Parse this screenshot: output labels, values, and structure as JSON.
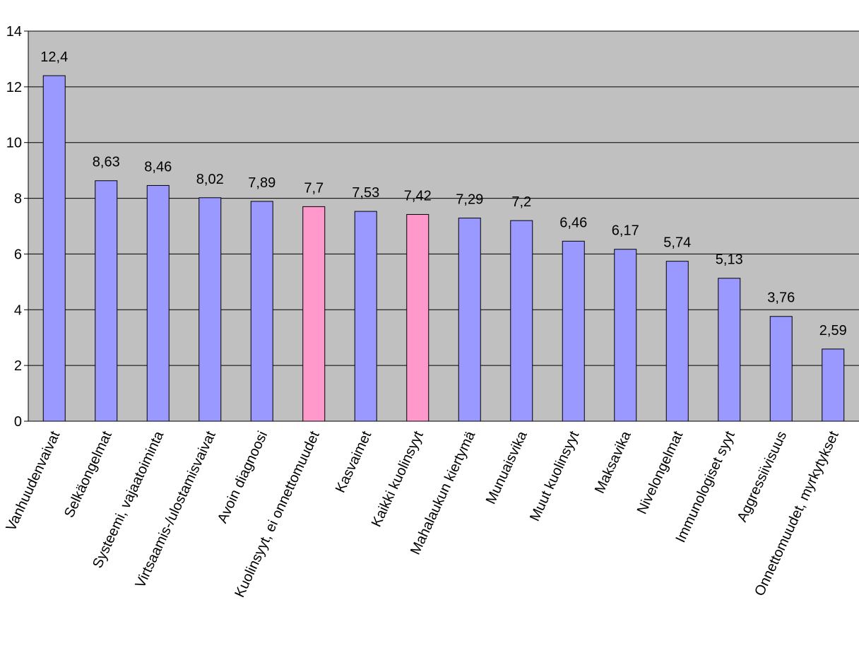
{
  "chart_data": {
    "type": "bar",
    "title": "",
    "xlabel": "",
    "ylabel": "",
    "ylim": [
      0,
      14
    ],
    "yticks": [
      0,
      2,
      4,
      6,
      8,
      10,
      12,
      14
    ],
    "grid": true,
    "legend": "none",
    "categories": [
      "Vanhuudenvaivat",
      "Selkäongelmat",
      "Systeemi, vajaatoiminta",
      "Virtsaamis-/ulostamisvaivat",
      "Avoin diagnoosi",
      "Kuolinsyyt, ei onnettomuudet",
      "Kasvaimet",
      "Kaikki kuolinsyyt",
      "Mahalaukun kiertymä",
      "Munuaisvika",
      "Muut kuolinsyyt",
      "Maksavika",
      "Nivelongelmat",
      "Immunologiset syyt",
      "Aggressiivisuus",
      "Onnettomuudet, myrkytykset"
    ],
    "values": [
      12.4,
      8.63,
      8.46,
      8.02,
      7.89,
      7.7,
      7.53,
      7.42,
      7.29,
      7.2,
      6.46,
      6.17,
      5.74,
      5.13,
      3.76,
      2.59
    ],
    "value_labels": [
      "12,4",
      "8,63",
      "8,46",
      "8,02",
      "7,89",
      "7,7",
      "7,53",
      "7,42",
      "7,29",
      "7,2",
      "6,46",
      "6,17",
      "5,74",
      "5,13",
      "3,76",
      "2,59"
    ],
    "highlighted": [
      false,
      false,
      false,
      false,
      false,
      true,
      false,
      true,
      false,
      false,
      false,
      false,
      false,
      false,
      false,
      false
    ],
    "colors": {
      "bar": "#9999ff",
      "highlight_bar": "#ff99cc",
      "plot_background": "#c0c0c0",
      "gridline": "#000000",
      "bar_outline": "#000000"
    }
  }
}
